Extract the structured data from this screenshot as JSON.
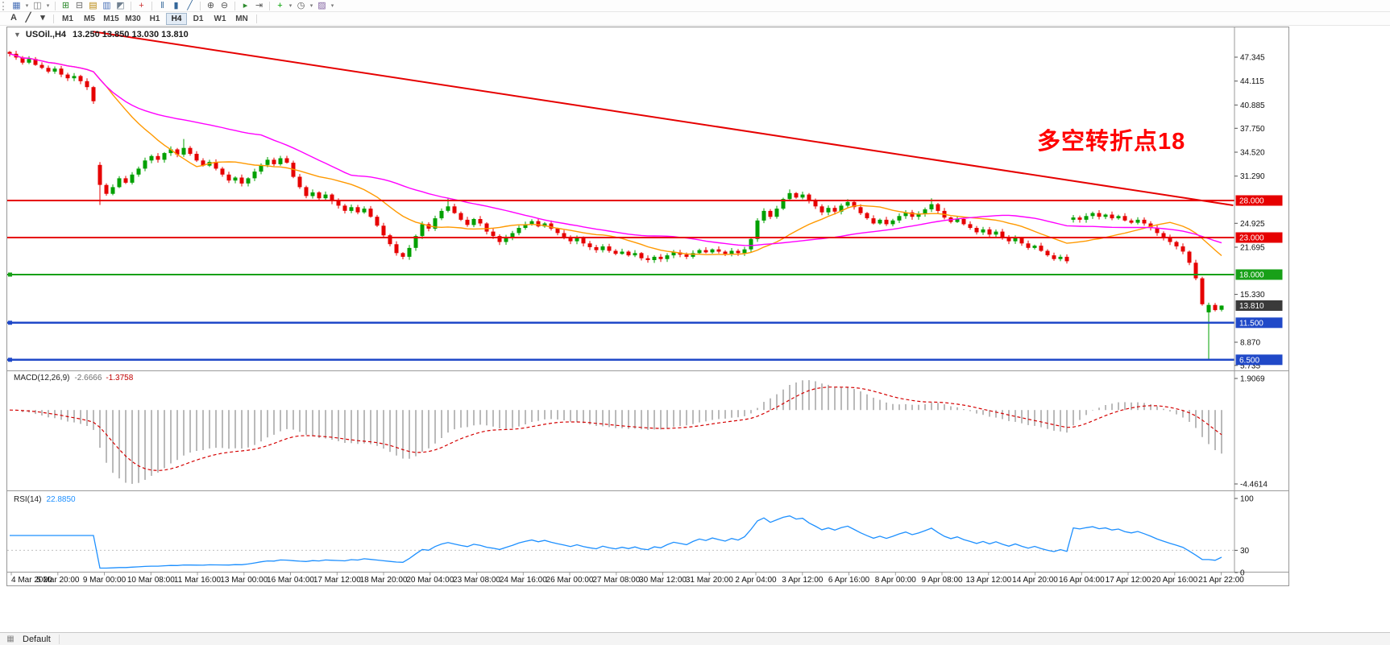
{
  "toolbar": {
    "row1": [
      {
        "type": "grip"
      },
      {
        "type": "icon",
        "name": "new-chart-icon",
        "glyph": "▦",
        "color": "#4a72b8"
      },
      {
        "type": "caret",
        "name": "new-chart-caret"
      },
      {
        "type": "icon",
        "name": "profiles-icon",
        "glyph": "◫",
        "color": "#7a7a7a"
      },
      {
        "type": "caret",
        "name": "profiles-caret"
      },
      {
        "type": "sep"
      },
      {
        "type": "icon",
        "name": "market-watch-icon",
        "glyph": "⊞",
        "color": "#2e8b2e"
      },
      {
        "type": "icon",
        "name": "data-window-icon",
        "glyph": "⊟",
        "color": "#666666"
      },
      {
        "type": "icon",
        "name": "navigator-icon",
        "glyph": "▤",
        "color": "#b8860b"
      },
      {
        "type": "icon",
        "name": "terminal-icon",
        "glyph": "▥",
        "color": "#4a72b8"
      },
      {
        "type": "icon",
        "name": "strategy-tester-icon",
        "glyph": "◩",
        "color": "#708090"
      },
      {
        "type": "sep"
      },
      {
        "type": "icon",
        "name": "new-order-icon",
        "glyph": "+",
        "color": "#cc3333"
      },
      {
        "type": "sep"
      },
      {
        "type": "icon",
        "name": "bar-chart-icon",
        "glyph": "‖",
        "color": "#336699"
      },
      {
        "type": "icon",
        "name": "candlestick-chart-icon",
        "glyph": "▮",
        "color": "#336699"
      },
      {
        "type": "icon",
        "name": "line-chart-icon",
        "glyph": "╱",
        "color": "#336699"
      },
      {
        "type": "sep"
      },
      {
        "type": "icon",
        "name": "zoom-in-icon",
        "glyph": "⊕",
        "color": "#555555"
      },
      {
        "type": "icon",
        "name": "zoom-out-icon",
        "glyph": "⊖",
        "color": "#555555"
      },
      {
        "type": "sep"
      },
      {
        "type": "icon",
        "name": "auto-scroll-icon",
        "glyph": "▸",
        "color": "#2e8b2e"
      },
      {
        "type": "icon",
        "name": "chart-shift-icon",
        "glyph": "⇥",
        "color": "#555555"
      },
      {
        "type": "sep"
      },
      {
        "type": "icon",
        "name": "indicators-add-icon",
        "glyph": "+",
        "color": "#00a000"
      },
      {
        "type": "caret",
        "name": "indicators-caret"
      },
      {
        "type": "icon",
        "name": "periods-icon",
        "glyph": "◷",
        "color": "#555555"
      },
      {
        "type": "caret",
        "name": "periods-caret"
      },
      {
        "type": "icon",
        "name": "templates-icon",
        "glyph": "▨",
        "color": "#8060a0"
      },
      {
        "type": "caret",
        "name": "templates-caret"
      }
    ],
    "row2": {
      "tools": [
        {
          "name": "text-label-tool",
          "glyph": "A"
        },
        {
          "name": "trendline-tool",
          "glyph": "╱"
        },
        {
          "name": "objects-dropdown",
          "glyph": "▾"
        }
      ],
      "timeframes": [
        "M1",
        "M5",
        "M15",
        "M30",
        "H1",
        "H4",
        "D1",
        "W1",
        "MN"
      ],
      "active_timeframe": "H4"
    }
  },
  "chart": {
    "collapse_arrow": "▼",
    "symbol": "USOil.,H4",
    "ohlc_text": "13.250 13.850 13.030 13.810",
    "annotation": {
      "text": "多空转折点18",
      "color": "#ff0000"
    }
  },
  "status_bar": {
    "icon": "▦",
    "profile": "Default"
  },
  "chart_data": [
    {
      "type": "candlestick",
      "symbol_timeframe": "USOil.,H4",
      "last_ohlc": {
        "open": 13.25,
        "high": 13.85,
        "low": 13.03,
        "close": 13.81
      },
      "up_color": "#00a000",
      "down_color": "#e60000",
      "price_axis_labels": [
        {
          "label": "47.345",
          "value": 47.345
        },
        {
          "label": "44.115",
          "value": 44.115
        },
        {
          "label": "40.885",
          "value": 40.885
        },
        {
          "label": "37.750",
          "value": 37.75
        },
        {
          "label": "34.520",
          "value": 34.52
        },
        {
          "label": "31.290",
          "value": 31.29
        },
        {
          "label": "24.925",
          "value": 24.925
        },
        {
          "label": "21.695",
          "value": 21.695
        },
        {
          "label": "15.330",
          "value": 15.33
        },
        {
          "label": "8.870",
          "value": 8.87
        },
        {
          "label": "5.735",
          "value": 5.735
        }
      ],
      "x_axis_labels": [
        "4 Mar 2020",
        "5 Mar 20:00",
        "9 Mar 00:00",
        "10 Mar 08:00",
        "11 Mar 16:00",
        "13 Mar 00:00",
        "16 Mar 04:00",
        "17 Mar 12:00",
        "18 Mar 20:00",
        "20 Mar 04:00",
        "23 Mar 08:00",
        "24 Mar 16:00",
        "26 Mar 00:00",
        "27 Mar 08:00",
        "30 Mar 12:00",
        "31 Mar 20:00",
        "2 Apr 04:00",
        "3 Apr 12:00",
        "6 Apr 16:00",
        "8 Apr 00:00",
        "9 Apr 08:00",
        "13 Apr 12:00",
        "14 Apr 20:00",
        "16 Apr 04:00",
        "17 Apr 12:00",
        "20 Apr 16:00",
        "21 Apr 22:00"
      ],
      "closes": [
        47.8,
        47.3,
        46.6,
        47.1,
        46.3,
        45.9,
        45.4,
        45.8,
        45.0,
        44.5,
        44.8,
        44.1,
        43.3,
        41.4,
        30.1,
        28.9,
        29.8,
        31.0,
        30.4,
        31.5,
        32.3,
        33.4,
        34.0,
        33.5,
        34.4,
        34.9,
        34.2,
        35.1,
        34.3,
        33.4,
        32.7,
        33.2,
        32.3,
        31.5,
        30.7,
        31.1,
        30.3,
        31.0,
        31.9,
        32.8,
        33.5,
        32.9,
        33.7,
        33.1,
        31.2,
        29.8,
        28.6,
        29.1,
        28.3,
        28.8,
        27.9,
        27.3,
        26.6,
        27.1,
        26.4,
        26.9,
        25.8,
        24.6,
        23.3,
        22.1,
        20.9,
        20.4,
        21.6,
        23.2,
        24.8,
        24.2,
        25.6,
        26.6,
        27.2,
        26.3,
        25.4,
        24.7,
        25.5,
        24.9,
        23.8,
        23.2,
        22.4,
        23.0,
        23.6,
        24.3,
        24.8,
        25.2,
        24.5,
        24.9,
        24.2,
        23.6,
        23.1,
        22.5,
        22.9,
        22.2,
        21.7,
        21.3,
        21.8,
        21.2,
        20.8,
        21.1,
        20.6,
        20.9,
        20.2,
        19.95,
        20.4,
        20.1,
        20.6,
        21.0,
        20.7,
        20.4,
        20.9,
        21.3,
        21.0,
        21.4,
        21.1,
        20.8,
        21.2,
        20.9,
        21.4,
        22.8,
        25.3,
        26.6,
        25.8,
        26.9,
        28.2,
        29.0,
        28.4,
        28.8,
        27.9,
        27.2,
        26.4,
        27.0,
        26.5,
        27.3,
        27.8,
        27.1,
        26.3,
        25.6,
        24.9,
        25.4,
        24.8,
        25.3,
        25.9,
        26.4,
        25.8,
        26.2,
        26.8,
        27.5,
        26.6,
        25.7,
        25.1,
        25.5,
        24.8,
        24.3,
        23.7,
        24.1,
        23.4,
        23.8,
        23.1,
        22.5,
        22.9,
        22.2,
        21.6,
        21.9,
        21.2,
        20.6,
        20.1,
        20.4,
        19.8,
        25.7,
        25.4,
        25.9,
        26.3,
        25.8,
        26.1,
        25.6,
        25.9,
        25.3,
        25.0,
        25.4,
        24.9,
        24.3,
        23.6,
        23.0,
        22.4,
        21.8,
        21.1,
        19.6,
        17.5,
        14.0,
        13.9,
        13.2,
        13.81
      ],
      "candle_overrides": {
        "14": {
          "o": 32.8,
          "l": 27.4
        },
        "27": {
          "h": 36.3
        },
        "61": {
          "l": 20.06
        },
        "68": {
          "h": 28.35
        },
        "121": {
          "h": 29.5
        },
        "143": {
          "h": 28.3
        },
        "164": {
          "l": 19.5
        },
        "165": {
          "o": 25.4
        },
        "186": {
          "o": 12.9,
          "h": 14.2,
          "l": 6.5
        },
        "188": {
          "o": 13.25,
          "h": 13.85,
          "l": 13.03
        }
      },
      "moving_averages": [
        {
          "name": "ma-fast",
          "period": 16,
          "color": "#ff9900"
        },
        {
          "name": "ma-slow",
          "period": 40,
          "color": "#ff00ff"
        }
      ],
      "horizontal_lines": [
        {
          "label": "28.000",
          "price": 28.0,
          "color": "#e60000",
          "width": 2,
          "handle": false
        },
        {
          "label": "23.000",
          "price": 23.0,
          "color": "#e60000",
          "width": 2,
          "handle": false
        },
        {
          "label": "18.000",
          "price": 18.0,
          "color": "#18a018",
          "width": 2,
          "handle": true
        },
        {
          "label": "11.500",
          "price": 11.5,
          "color": "#2049c8",
          "width": 2.5,
          "handle": true
        },
        {
          "label": "6.500",
          "price": 6.5,
          "color": "#2049c8",
          "width": 2.5,
          "handle": true
        }
      ],
      "trendline": {
        "bar1": 12.9,
        "price1": 50.8,
        "bar2": 189.8,
        "price2": 27.35,
        "color": "#e60000",
        "width": 2
      },
      "current_price": {
        "label": "13.810",
        "value": 13.81,
        "color": "#3a3a3a"
      }
    },
    {
      "type": "macd",
      "label": "MACD(12,26,9)",
      "value_main": "-2.6666",
      "value_signal": "-1.3758",
      "params": {
        "fast": 12,
        "slow": 26,
        "signal": 9
      },
      "axis_labels": [
        {
          "label": "1.9069",
          "value": 1.9069
        },
        {
          "label": "-4.4614",
          "value": -4.4614
        }
      ],
      "histogram_color": "#a8a8a8",
      "signal_color": "#d40000"
    },
    {
      "type": "rsi",
      "label": "RSI(14)",
      "value": "22.8850",
      "period": 14,
      "axis_labels": [
        {
          "label": "100",
          "value": 100
        },
        {
          "label": "30",
          "value": 30
        },
        {
          "label": "0",
          "value": 0
        }
      ],
      "levels": [
        30
      ],
      "color": "#1e90ff"
    }
  ]
}
